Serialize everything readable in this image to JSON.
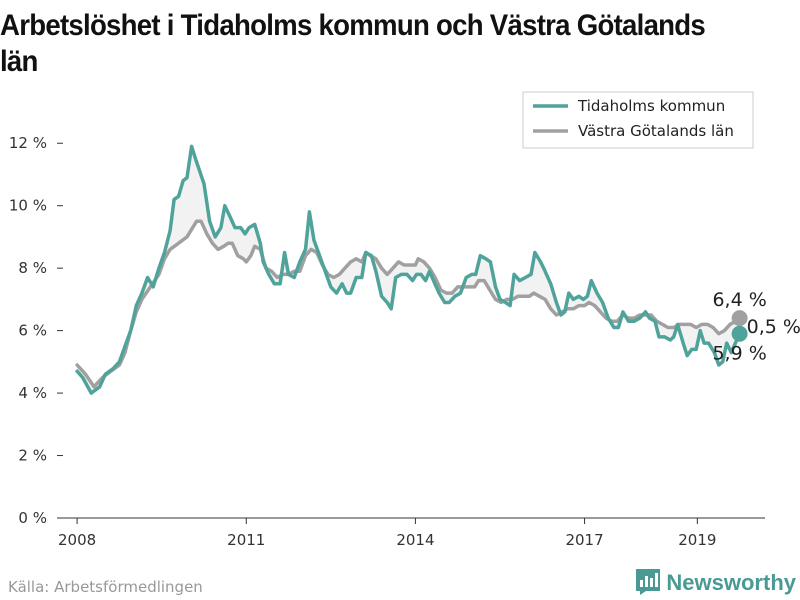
{
  "title": "Arbetslöshet i Tidaholms kommun och Västra Götalands län",
  "source": "Källa: Arbetsförmedlingen",
  "brand": {
    "name": "Newsworthy",
    "icon": "bar-chart-icon"
  },
  "colors": {
    "series1": "#4fa39b",
    "series2": "#a0a0a0",
    "fill": "#f2f2f2",
    "brand": "#4a9a94"
  },
  "chart_data": {
    "type": "line",
    "ylim": [
      0,
      13
    ],
    "yticks": [
      0,
      2,
      4,
      6,
      8,
      10,
      12
    ],
    "ytick_labels": [
      "0 %",
      "2 %",
      "4 %",
      "6 %",
      "8 %",
      "10 %",
      "12 %"
    ],
    "xlim": [
      2007.75,
      2020.2
    ],
    "xticks": [
      2008,
      2011,
      2014,
      2017,
      2019
    ],
    "xtick_labels": [
      "2008",
      "2011",
      "2014",
      "2017",
      "2019"
    ],
    "grid": false,
    "legend_position": "top-right",
    "series": [
      {
        "name": "Tidaholms kommun",
        "color": "#4fa39b",
        "end_label": "5,9 %",
        "points": [
          [
            2008.0,
            4.7
          ],
          [
            2008.1,
            4.5
          ],
          [
            2008.25,
            4.0
          ],
          [
            2008.4,
            4.2
          ],
          [
            2008.5,
            4.6
          ],
          [
            2008.65,
            4.8
          ],
          [
            2008.75,
            5.0
          ],
          [
            2008.85,
            5.5
          ],
          [
            2008.95,
            6.0
          ],
          [
            2009.05,
            6.8
          ],
          [
            2009.15,
            7.2
          ],
          [
            2009.25,
            7.7
          ],
          [
            2009.35,
            7.4
          ],
          [
            2009.45,
            8.0
          ],
          [
            2009.55,
            8.5
          ],
          [
            2009.65,
            9.2
          ],
          [
            2009.72,
            10.2
          ],
          [
            2009.8,
            10.3
          ],
          [
            2009.88,
            10.8
          ],
          [
            2009.95,
            10.9
          ],
          [
            2010.03,
            11.9
          ],
          [
            2010.1,
            11.5
          ],
          [
            2010.25,
            10.7
          ],
          [
            2010.35,
            9.5
          ],
          [
            2010.45,
            9.0
          ],
          [
            2010.55,
            9.3
          ],
          [
            2010.62,
            10.0
          ],
          [
            2010.7,
            9.7
          ],
          [
            2010.8,
            9.3
          ],
          [
            2010.9,
            9.3
          ],
          [
            2010.98,
            9.1
          ],
          [
            2011.05,
            9.3
          ],
          [
            2011.15,
            9.4
          ],
          [
            2011.25,
            8.8
          ],
          [
            2011.3,
            8.2
          ],
          [
            2011.4,
            7.8
          ],
          [
            2011.5,
            7.5
          ],
          [
            2011.6,
            7.5
          ],
          [
            2011.68,
            8.5
          ],
          [
            2011.75,
            7.8
          ],
          [
            2011.85,
            7.7
          ],
          [
            2011.95,
            8.2
          ],
          [
            2012.05,
            8.6
          ],
          [
            2012.12,
            9.8
          ],
          [
            2012.2,
            8.9
          ],
          [
            2012.3,
            8.4
          ],
          [
            2012.4,
            7.9
          ],
          [
            2012.5,
            7.4
          ],
          [
            2012.6,
            7.2
          ],
          [
            2012.7,
            7.5
          ],
          [
            2012.78,
            7.2
          ],
          [
            2012.85,
            7.2
          ],
          [
            2012.95,
            7.7
          ],
          [
            2013.05,
            7.7
          ],
          [
            2013.12,
            8.5
          ],
          [
            2013.22,
            8.4
          ],
          [
            2013.3,
            7.9
          ],
          [
            2013.4,
            7.1
          ],
          [
            2013.5,
            6.9
          ],
          [
            2013.57,
            6.7
          ],
          [
            2013.65,
            7.7
          ],
          [
            2013.75,
            7.8
          ],
          [
            2013.85,
            7.8
          ],
          [
            2013.95,
            7.6
          ],
          [
            2014.02,
            7.8
          ],
          [
            2014.1,
            7.8
          ],
          [
            2014.18,
            7.6
          ],
          [
            2014.25,
            7.9
          ],
          [
            2014.32,
            7.6
          ],
          [
            2014.42,
            7.2
          ],
          [
            2014.52,
            6.9
          ],
          [
            2014.6,
            6.9
          ],
          [
            2014.7,
            7.1
          ],
          [
            2014.8,
            7.2
          ],
          [
            2014.9,
            7.7
          ],
          [
            2015.0,
            7.8
          ],
          [
            2015.07,
            7.8
          ],
          [
            2015.15,
            8.4
          ],
          [
            2015.25,
            8.3
          ],
          [
            2015.33,
            8.2
          ],
          [
            2015.42,
            7.4
          ],
          [
            2015.5,
            7.0
          ],
          [
            2015.6,
            6.9
          ],
          [
            2015.68,
            6.8
          ],
          [
            2015.75,
            7.8
          ],
          [
            2015.85,
            7.6
          ],
          [
            2015.95,
            7.7
          ],
          [
            2016.05,
            7.8
          ],
          [
            2016.12,
            8.5
          ],
          [
            2016.22,
            8.2
          ],
          [
            2016.3,
            7.9
          ],
          [
            2016.4,
            7.5
          ],
          [
            2016.5,
            6.9
          ],
          [
            2016.58,
            6.5
          ],
          [
            2016.65,
            6.6
          ],
          [
            2016.72,
            7.2
          ],
          [
            2016.8,
            7.0
          ],
          [
            2016.9,
            7.1
          ],
          [
            2016.98,
            7.0
          ],
          [
            2017.05,
            7.1
          ],
          [
            2017.12,
            7.6
          ],
          [
            2017.22,
            7.2
          ],
          [
            2017.32,
            6.9
          ],
          [
            2017.42,
            6.4
          ],
          [
            2017.52,
            6.1
          ],
          [
            2017.6,
            6.1
          ],
          [
            2017.68,
            6.6
          ],
          [
            2017.78,
            6.3
          ],
          [
            2017.88,
            6.3
          ],
          [
            2017.98,
            6.4
          ],
          [
            2018.08,
            6.6
          ],
          [
            2018.15,
            6.4
          ],
          [
            2018.25,
            6.3
          ],
          [
            2018.32,
            5.8
          ],
          [
            2018.42,
            5.8
          ],
          [
            2018.52,
            5.7
          ],
          [
            2018.58,
            5.8
          ],
          [
            2018.65,
            6.2
          ],
          [
            2018.75,
            5.6
          ],
          [
            2018.82,
            5.2
          ],
          [
            2018.9,
            5.4
          ],
          [
            2018.98,
            5.4
          ],
          [
            2019.05,
            6.0
          ],
          [
            2019.12,
            5.6
          ],
          [
            2019.2,
            5.6
          ],
          [
            2019.3,
            5.3
          ],
          [
            2019.38,
            4.9
          ],
          [
            2019.45,
            5.0
          ],
          [
            2019.52,
            5.6
          ],
          [
            2019.6,
            5.3
          ],
          [
            2019.75,
            5.9
          ]
        ]
      },
      {
        "name": "Västra Götalands län",
        "color": "#a0a0a0",
        "end_label": "6,4 %",
        "points": [
          [
            2008.0,
            4.9
          ],
          [
            2008.15,
            4.6
          ],
          [
            2008.3,
            4.2
          ],
          [
            2008.45,
            4.5
          ],
          [
            2008.6,
            4.7
          ],
          [
            2008.75,
            4.9
          ],
          [
            2008.85,
            5.3
          ],
          [
            2008.95,
            6.0
          ],
          [
            2009.05,
            6.6
          ],
          [
            2009.15,
            7.0
          ],
          [
            2009.3,
            7.4
          ],
          [
            2009.45,
            7.8
          ],
          [
            2009.55,
            8.3
          ],
          [
            2009.65,
            8.6
          ],
          [
            2009.8,
            8.8
          ],
          [
            2009.95,
            9.0
          ],
          [
            2010.05,
            9.3
          ],
          [
            2010.12,
            9.5
          ],
          [
            2010.2,
            9.5
          ],
          [
            2010.3,
            9.1
          ],
          [
            2010.4,
            8.8
          ],
          [
            2010.5,
            8.6
          ],
          [
            2010.6,
            8.7
          ],
          [
            2010.68,
            8.8
          ],
          [
            2010.75,
            8.8
          ],
          [
            2010.85,
            8.4
          ],
          [
            2010.95,
            8.3
          ],
          [
            2011.0,
            8.2
          ],
          [
            2011.08,
            8.4
          ],
          [
            2011.15,
            8.7
          ],
          [
            2011.25,
            8.6
          ],
          [
            2011.35,
            8.0
          ],
          [
            2011.45,
            7.9
          ],
          [
            2011.55,
            7.7
          ],
          [
            2011.65,
            7.8
          ],
          [
            2011.75,
            7.8
          ],
          [
            2011.85,
            7.9
          ],
          [
            2011.95,
            7.9
          ],
          [
            2012.05,
            8.4
          ],
          [
            2012.15,
            8.6
          ],
          [
            2012.25,
            8.5
          ],
          [
            2012.35,
            8.1
          ],
          [
            2012.45,
            7.8
          ],
          [
            2012.55,
            7.7
          ],
          [
            2012.65,
            7.8
          ],
          [
            2012.75,
            8.0
          ],
          [
            2012.85,
            8.2
          ],
          [
            2012.95,
            8.3
          ],
          [
            2013.05,
            8.2
          ],
          [
            2013.12,
            8.5
          ],
          [
            2013.2,
            8.4
          ],
          [
            2013.3,
            8.3
          ],
          [
            2013.4,
            8.0
          ],
          [
            2013.5,
            7.8
          ],
          [
            2013.6,
            8.0
          ],
          [
            2013.7,
            8.2
          ],
          [
            2013.8,
            8.1
          ],
          [
            2013.9,
            8.1
          ],
          [
            2014.0,
            8.1
          ],
          [
            2014.05,
            8.3
          ],
          [
            2014.15,
            8.2
          ],
          [
            2014.25,
            8.0
          ],
          [
            2014.35,
            7.7
          ],
          [
            2014.45,
            7.3
          ],
          [
            2014.55,
            7.2
          ],
          [
            2014.65,
            7.2
          ],
          [
            2014.75,
            7.4
          ],
          [
            2014.85,
            7.4
          ],
          [
            2014.95,
            7.4
          ],
          [
            2015.05,
            7.4
          ],
          [
            2015.12,
            7.6
          ],
          [
            2015.22,
            7.6
          ],
          [
            2015.32,
            7.3
          ],
          [
            2015.42,
            7.0
          ],
          [
            2015.52,
            6.9
          ],
          [
            2015.62,
            7.0
          ],
          [
            2015.72,
            7.0
          ],
          [
            2015.82,
            7.1
          ],
          [
            2015.92,
            7.1
          ],
          [
            2016.02,
            7.1
          ],
          [
            2016.1,
            7.2
          ],
          [
            2016.2,
            7.1
          ],
          [
            2016.3,
            7.0
          ],
          [
            2016.4,
            6.7
          ],
          [
            2016.5,
            6.5
          ],
          [
            2016.6,
            6.6
          ],
          [
            2016.7,
            6.7
          ],
          [
            2016.8,
            6.7
          ],
          [
            2016.9,
            6.8
          ],
          [
            2017.0,
            6.8
          ],
          [
            2017.08,
            6.9
          ],
          [
            2017.18,
            6.8
          ],
          [
            2017.28,
            6.6
          ],
          [
            2017.38,
            6.4
          ],
          [
            2017.48,
            6.3
          ],
          [
            2017.58,
            6.3
          ],
          [
            2017.68,
            6.5
          ],
          [
            2017.78,
            6.4
          ],
          [
            2017.88,
            6.4
          ],
          [
            2017.98,
            6.5
          ],
          [
            2018.08,
            6.5
          ],
          [
            2018.18,
            6.5
          ],
          [
            2018.28,
            6.3
          ],
          [
            2018.38,
            6.2
          ],
          [
            2018.48,
            6.1
          ],
          [
            2018.58,
            6.1
          ],
          [
            2018.68,
            6.2
          ],
          [
            2018.78,
            6.2
          ],
          [
            2018.88,
            6.2
          ],
          [
            2018.98,
            6.1
          ],
          [
            2019.08,
            6.2
          ],
          [
            2019.18,
            6.2
          ],
          [
            2019.28,
            6.1
          ],
          [
            2019.38,
            5.9
          ],
          [
            2019.48,
            6.0
          ],
          [
            2019.58,
            6.2
          ],
          [
            2019.68,
            6.3
          ],
          [
            2019.75,
            6.4
          ]
        ]
      }
    ],
    "annotations": [
      {
        "text": "6,4 %",
        "series": "Västra Götalands län"
      },
      {
        "text": "0,5 %",
        "meaning": "difference"
      },
      {
        "text": "5,9 %",
        "series": "Tidaholms kommun"
      }
    ]
  }
}
